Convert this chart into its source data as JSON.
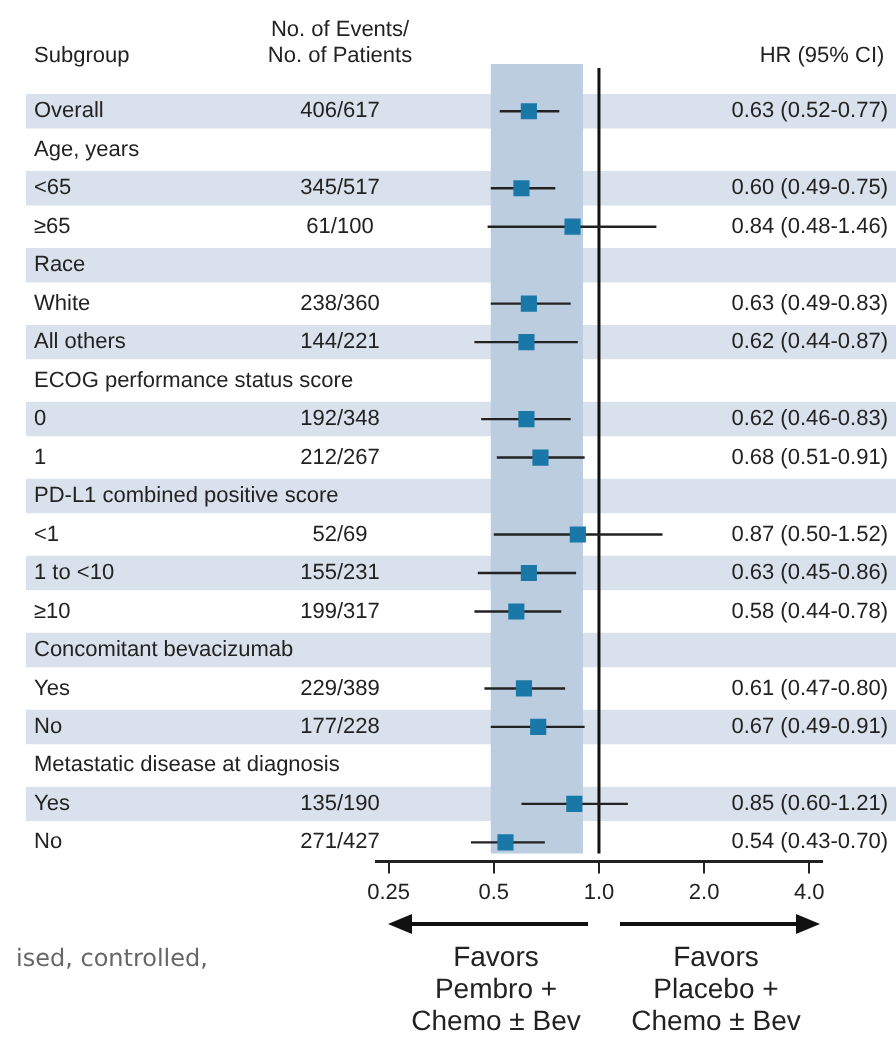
{
  "chart_data": {
    "type": "scatter",
    "orientation": "horizontal",
    "ylabel": "Subgroup",
    "categories": [
      "Overall",
      "Age, years",
      "<65",
      "≥65",
      "Race",
      "White",
      "All others",
      "ECOG performance status score",
      "0",
      "1",
      "PD-L1 combined positive score",
      "<1",
      "1 to <10",
      "≥10",
      "Concomitant bevacizumab",
      "Yes",
      "No",
      "Metastatic disease at diagnosis",
      "Yes",
      "No"
    ],
    "values": [
      0.63,
      null,
      0.6,
      0.84,
      null,
      0.63,
      0.62,
      null,
      0.62,
      0.68,
      null,
      0.87,
      0.63,
      0.58,
      null,
      0.61,
      0.67,
      null,
      0.85,
      0.54
    ],
    "errors": [
      [
        0.52,
        0.77
      ],
      null,
      [
        0.49,
        0.75
      ],
      [
        0.48,
        1.46
      ],
      null,
      [
        0.49,
        0.83
      ],
      [
        0.44,
        0.87
      ],
      null,
      [
        0.46,
        0.83
      ],
      [
        0.51,
        0.91
      ],
      null,
      [
        0.5,
        1.52
      ],
      [
        0.45,
        0.86
      ],
      [
        0.44,
        0.78
      ],
      null,
      [
        0.47,
        0.8
      ],
      [
        0.49,
        0.91
      ],
      null,
      [
        0.6,
        1.21
      ],
      [
        0.43,
        0.7
      ]
    ],
    "color": "#1a78a8",
    "marker": "square",
    "log": "x",
    "xlim": [
      0.23,
      4.35
    ],
    "xticks": [
      0.25,
      0.5,
      {
        "value": 1,
        "label": "1.0"
      },
      {
        "value": 2,
        "label": "2.0"
      },
      {
        "value": 4,
        "label": "4.0"
      }
    ],
    "ref_lines": [
      {
        "axis": "x",
        "value": 1,
        "color": "#111111"
      }
    ],
    "bands": [
      {
        "axis": "x",
        "from": 0.49,
        "to": 0.9,
        "color": "#bccde0"
      }
    ],
    "annotations": [
      "No. of Events/\nNo. of Patients",
      "HR (95% CI)",
      "Favors\nPembro +\nChemo ± Bev",
      "Favors\nPlacebo +\nChemo ± Bev",
      "ised, controlled,",
      "406/617",
      "0.63 (0.52-0.77)",
      "345/517",
      "0.60 (0.49-0.75)",
      "61/100",
      "0.84 (0.48-1.46)",
      "238/360",
      "0.63 (0.49-0.83)",
      "144/221",
      "0.62 (0.44-0.87)",
      "192/348",
      "0.62 (0.46-0.83)",
      "212/267",
      "0.68 (0.51-0.91)",
      "52/69",
      "0.87 (0.50-1.52)",
      "155/231",
      "0.63 (0.45-0.86)",
      "199/317",
      "0.58 (0.44-0.78)",
      "229/389",
      "0.61 (0.47-0.80)",
      "177/228",
      "0.67 (0.49-0.91)",
      "135/190",
      "0.85 (0.60-1.21)",
      "271/427",
      "0.54 (0.43-0.70)"
    ],
    "grid": false
  }
}
